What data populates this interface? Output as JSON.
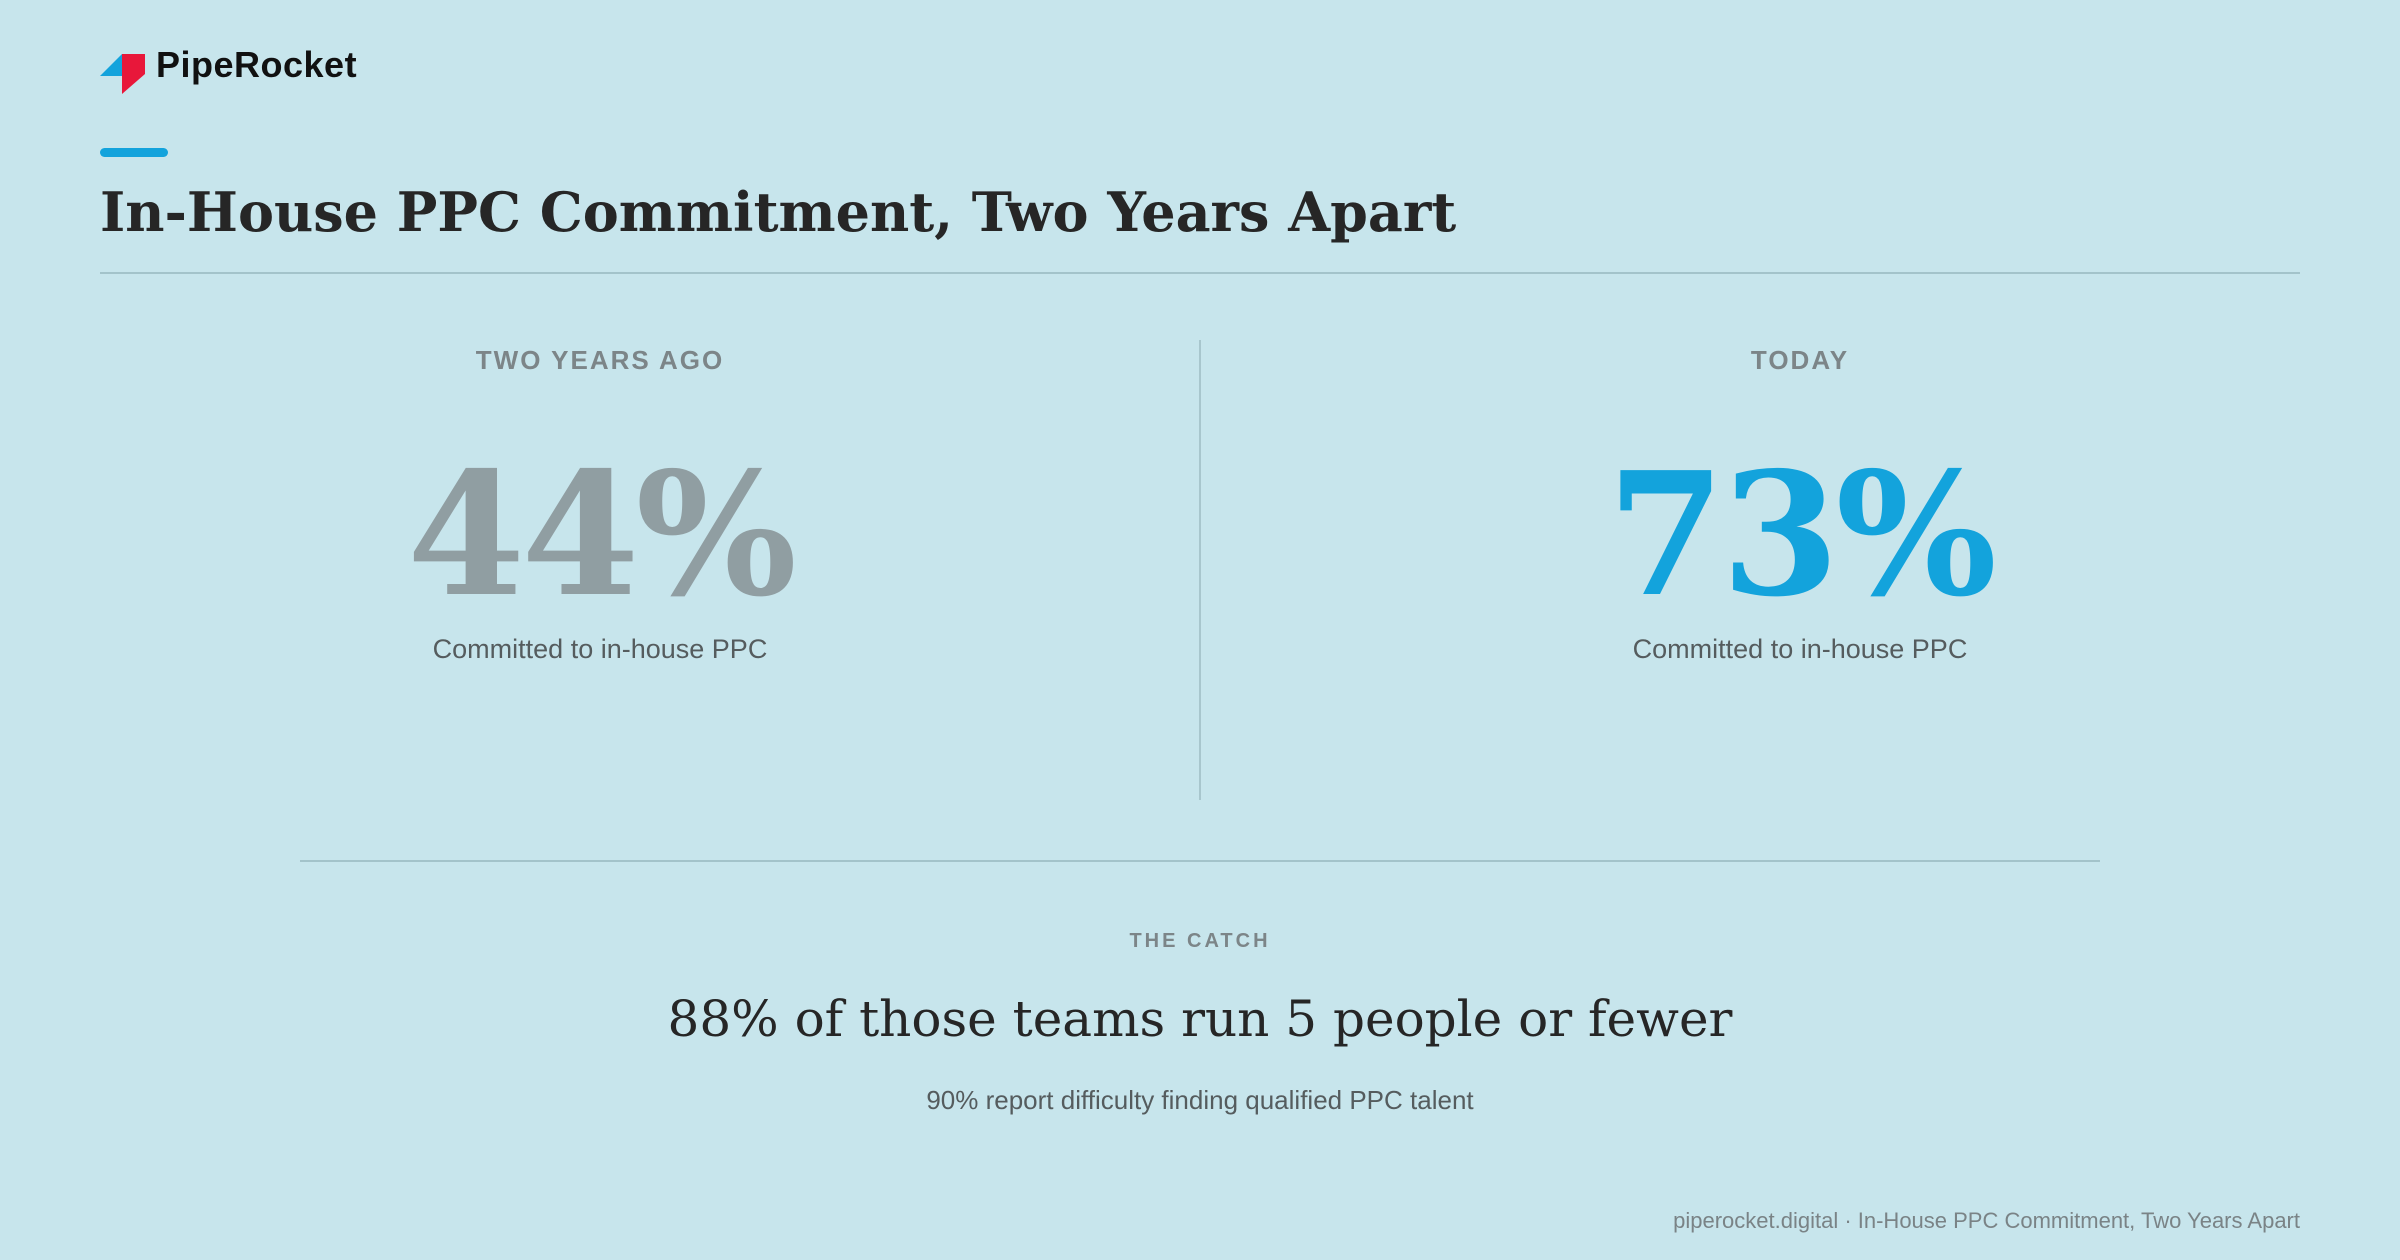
{
  "brand": "PipeRocket",
  "header": {
    "title": "In-House PPC Commitment, Two Years Apart"
  },
  "stats": [
    {
      "label": "TWO YEARS AGO",
      "value": "44%",
      "caption": "Committed to in-house PPC"
    },
    {
      "label": "TODAY",
      "value": "73%",
      "caption": "Committed to in-house PPC"
    }
  ],
  "catch": {
    "label": "THE CATCH",
    "headline": "88% of those teams run 5 people or fewer",
    "subline": "90% report difficulty finding qualified PPC talent"
  },
  "footer": "piperocket.digital · In-House PPC Commitment, Two Years Apart"
}
